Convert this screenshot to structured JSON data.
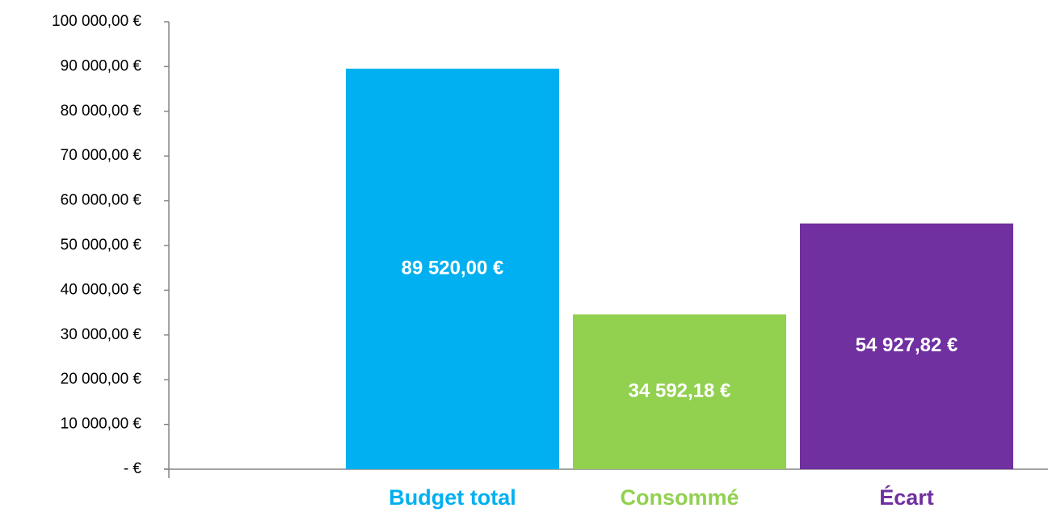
{
  "chart_data": {
    "type": "bar",
    "categories": [
      "Budget total",
      "Consommé",
      "Écart"
    ],
    "values": [
      89520.0,
      34592.18,
      54927.82
    ],
    "value_labels": [
      "89 520,00 €",
      "34 592,18 €",
      "54 927,82 €"
    ],
    "colors": [
      "#00b0f0",
      "#92d050",
      "#7030a0"
    ],
    "ylim": [
      0,
      100000
    ],
    "yticks": [
      {
        "value": 0,
        "label": "-   €"
      },
      {
        "value": 10000,
        "label": "10 000,00 €"
      },
      {
        "value": 20000,
        "label": "20 000,00 €"
      },
      {
        "value": 30000,
        "label": "30 000,00 €"
      },
      {
        "value": 40000,
        "label": "40 000,00 €"
      },
      {
        "value": 50000,
        "label": "50 000,00 €"
      },
      {
        "value": 60000,
        "label": "60 000,00 €"
      },
      {
        "value": 70000,
        "label": "70 000,00 €"
      },
      {
        "value": 80000,
        "label": "80 000,00 €"
      },
      {
        "value": 90000,
        "label": "90 000,00 €"
      },
      {
        "value": 100000,
        "label": "100 000,00 €"
      }
    ],
    "grid": false
  }
}
